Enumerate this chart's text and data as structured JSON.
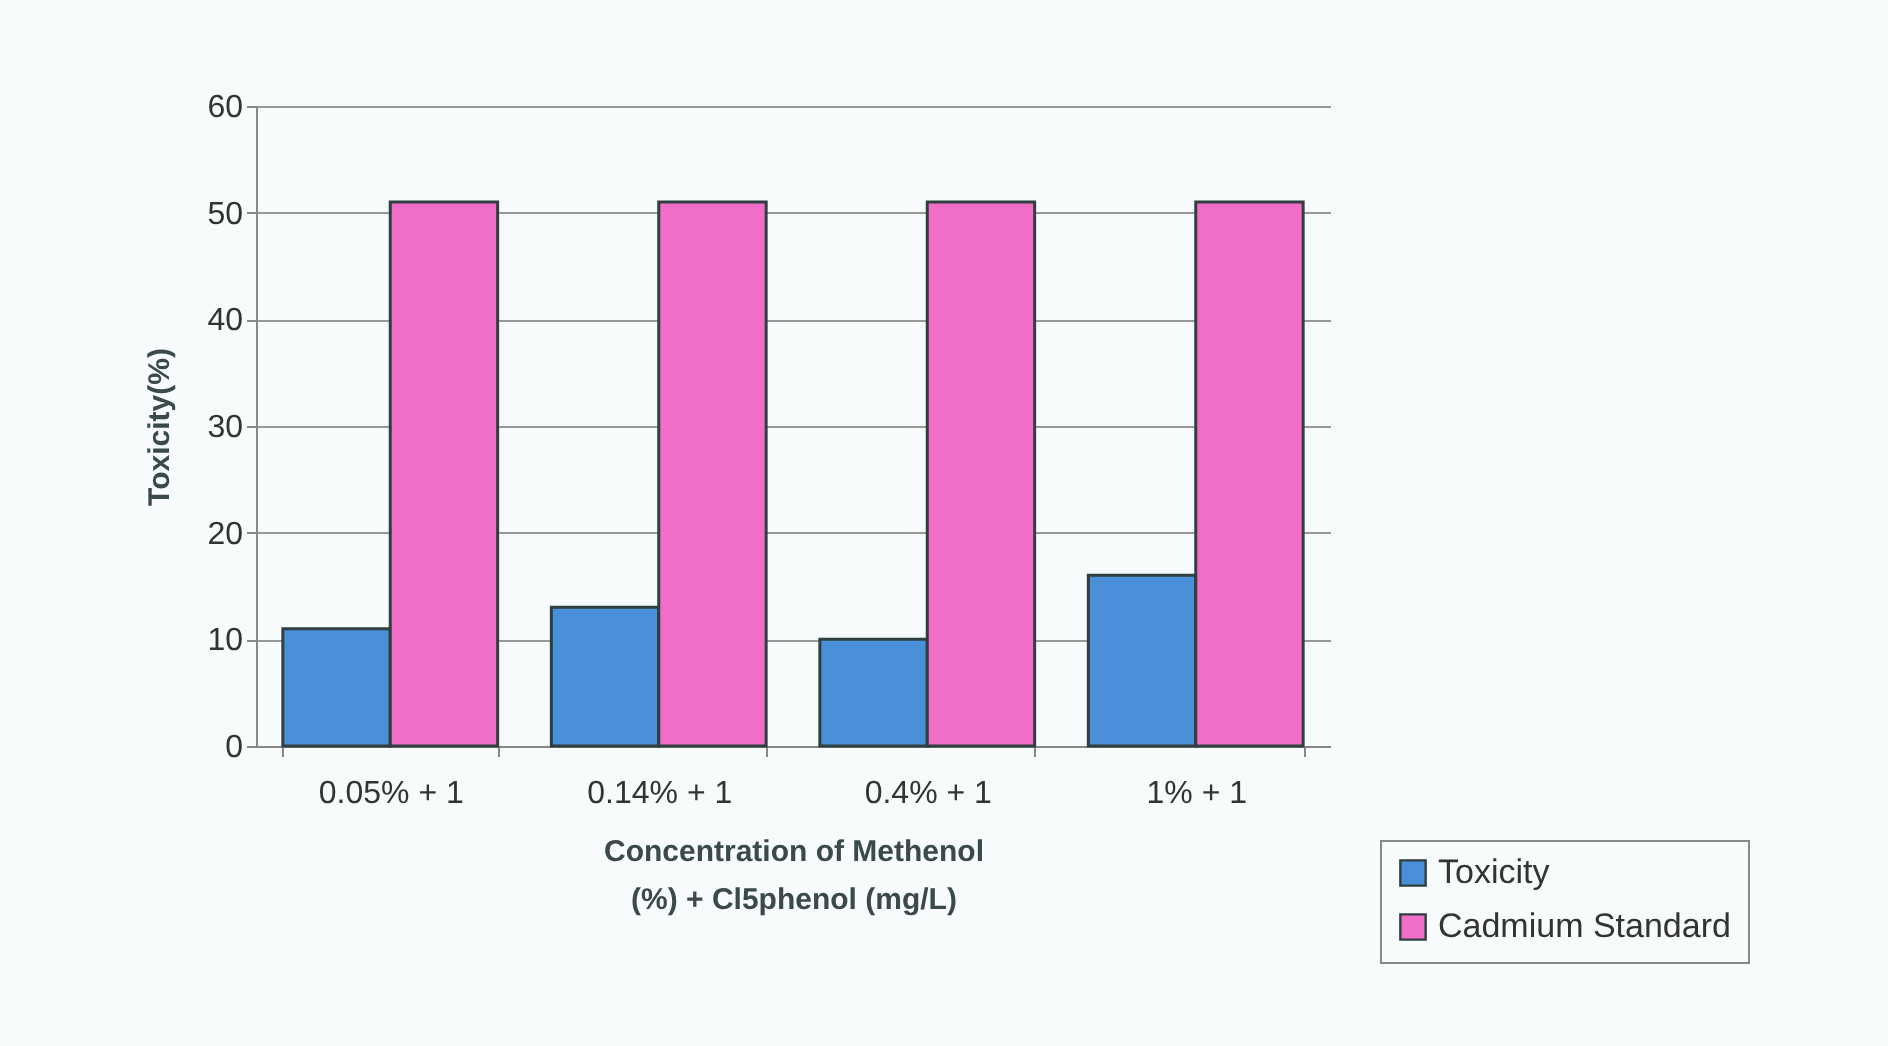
{
  "chart_data": {
    "type": "bar",
    "xlabel": "Concentration of Methenol (%) + Cl5phenol (mg/L)",
    "ylabel": "Toxicity(%)",
    "categories": [
      "0.05% + 1",
      "0.14% + 1",
      "0.4% + 1",
      "1% + 1"
    ],
    "series": [
      {
        "name": "Toxicity",
        "color": "#4a90d9",
        "values": [
          11,
          13,
          10,
          16
        ]
      },
      {
        "name": "Cadmium Standard",
        "color": "#f06ec8",
        "values": [
          51,
          51,
          51,
          51
        ]
      }
    ],
    "ylim": [
      0,
      60
    ],
    "yticks": [
      0,
      10,
      20,
      30,
      40,
      50,
      60
    ],
    "grid": "y",
    "legend": "bottom right"
  }
}
